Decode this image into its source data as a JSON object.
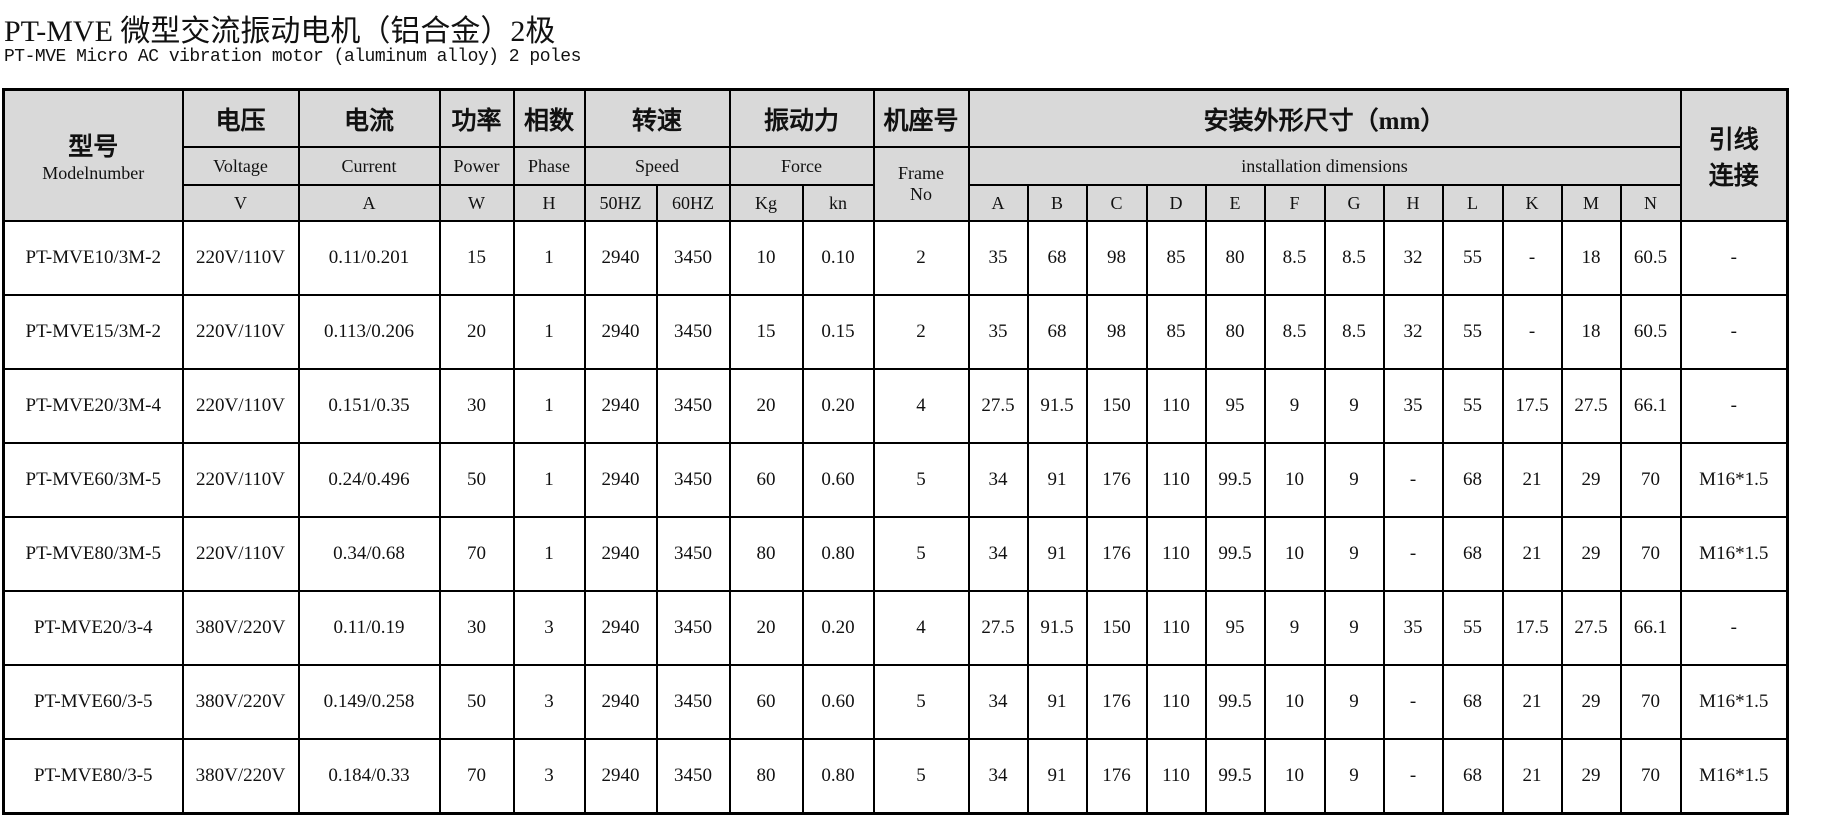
{
  "title": "PT-MVE 微型交流振动电机（铝合金）2极",
  "subtitle": "PT-MVE Micro AC vibration motor (aluminum alloy) 2 poles",
  "headers": {
    "model": {
      "zh": "型号",
      "en": "Modelnumber"
    },
    "voltage": {
      "zh": "电压",
      "en": "Voltage",
      "unit": "V"
    },
    "current": {
      "zh": "电流",
      "en": "Current",
      "unit": "A"
    },
    "power": {
      "zh": "功率",
      "en": "Power",
      "unit": "W"
    },
    "phase": {
      "zh": "相数",
      "en": "Phase",
      "unit": "H"
    },
    "speed": {
      "zh": "转速",
      "en": "Speed",
      "units": [
        "50HZ",
        "60HZ"
      ]
    },
    "force": {
      "zh": "振动力",
      "en": "Force",
      "units": [
        "Kg",
        "kn"
      ]
    },
    "frame": {
      "zh": "机座号",
      "en1": "Frame",
      "en2": "No"
    },
    "dims": {
      "zh": "安装外形尺寸（mm）",
      "en": "installation dimensions",
      "cols": [
        "A",
        "B",
        "C",
        "D",
        "E",
        "F",
        "G",
        "H",
        "L",
        "K",
        "M",
        "N"
      ]
    },
    "lead": {
      "zh1": "引线",
      "zh2": "连接"
    }
  },
  "rows": [
    [
      "PT-MVE10/3M-2",
      "220V/110V",
      "0.11/0.201",
      "15",
      "1",
      "2940",
      "3450",
      "10",
      "0.10",
      "2",
      "35",
      "68",
      "98",
      "85",
      "80",
      "8.5",
      "8.5",
      "32",
      "55",
      "-",
      "18",
      "60.5",
      "-"
    ],
    [
      "PT-MVE15/3M-2",
      "220V/110V",
      "0.113/0.206",
      "20",
      "1",
      "2940",
      "3450",
      "15",
      "0.15",
      "2",
      "35",
      "68",
      "98",
      "85",
      "80",
      "8.5",
      "8.5",
      "32",
      "55",
      "-",
      "18",
      "60.5",
      "-"
    ],
    [
      "PT-MVE20/3M-4",
      "220V/110V",
      "0.151/0.35",
      "30",
      "1",
      "2940",
      "3450",
      "20",
      "0.20",
      "4",
      "27.5",
      "91.5",
      "150",
      "110",
      "95",
      "9",
      "9",
      "35",
      "55",
      "17.5",
      "27.5",
      "66.1",
      "-"
    ],
    [
      "PT-MVE60/3M-5",
      "220V/110V",
      "0.24/0.496",
      "50",
      "1",
      "2940",
      "3450",
      "60",
      "0.60",
      "5",
      "34",
      "91",
      "176",
      "110",
      "99.5",
      "10",
      "9",
      "-",
      "68",
      "21",
      "29",
      "70",
      "M16*1.5"
    ],
    [
      "PT-MVE80/3M-5",
      "220V/110V",
      "0.34/0.68",
      "70",
      "1",
      "2940",
      "3450",
      "80",
      "0.80",
      "5",
      "34",
      "91",
      "176",
      "110",
      "99.5",
      "10",
      "9",
      "-",
      "68",
      "21",
      "29",
      "70",
      "M16*1.5"
    ],
    [
      "PT-MVE20/3-4",
      "380V/220V",
      "0.11/0.19",
      "30",
      "3",
      "2940",
      "3450",
      "20",
      "0.20",
      "4",
      "27.5",
      "91.5",
      "150",
      "110",
      "95",
      "9",
      "9",
      "35",
      "55",
      "17.5",
      "27.5",
      "66.1",
      "-"
    ],
    [
      "PT-MVE60/3-5",
      "380V/220V",
      "0.149/0.258",
      "50",
      "3",
      "2940",
      "3450",
      "60",
      "0.60",
      "5",
      "34",
      "91",
      "176",
      "110",
      "99.5",
      "10",
      "9",
      "-",
      "68",
      "21",
      "29",
      "70",
      "M16*1.5"
    ],
    [
      "PT-MVE80/3-5",
      "380V/220V",
      "0.184/0.33",
      "70",
      "3",
      "2940",
      "3450",
      "80",
      "0.80",
      "5",
      "34",
      "91",
      "176",
      "110",
      "99.5",
      "10",
      "9",
      "-",
      "68",
      "21",
      "29",
      "70",
      "M16*1.5"
    ]
  ],
  "colors": {
    "header_bg": "#d9d9d9",
    "border": "#000000"
  }
}
